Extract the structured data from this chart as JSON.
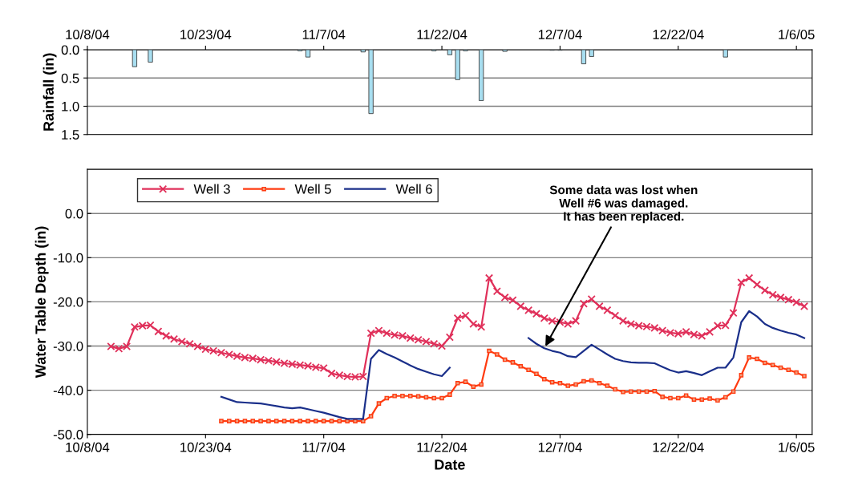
{
  "chart_data": [
    {
      "type": "bar",
      "ylabel": "Rainfall (in)",
      "x": [
        "2004-10-14",
        "2004-10-16",
        "2004-11-04",
        "2004-11-05",
        "2004-11-12",
        "2004-11-13",
        "2004-11-21",
        "2004-11-23",
        "2004-11-24",
        "2004-11-25",
        "2004-11-27",
        "2004-11-30",
        "2004-12-06",
        "2004-12-07",
        "2004-12-10",
        "2004-12-11",
        "2004-12-28"
      ],
      "values": [
        0.3,
        0.22,
        0.02,
        0.13,
        0.04,
        1.13,
        0.02,
        0.09,
        0.53,
        0.02,
        0.9,
        0.03,
        0.01,
        0.01,
        0.25,
        0.12,
        0.13
      ],
      "color": "#a8def0",
      "xlim": [
        "2004-10-08",
        "2005-01-08"
      ],
      "xticks": [
        {
          "value": "2004-10-08",
          "label": "10/8/04"
        },
        {
          "value": "2004-10-23",
          "label": "10/23/04"
        },
        {
          "value": "2004-11-07",
          "label": "11/7/04"
        },
        {
          "value": "2004-11-22",
          "label": "11/22/04"
        },
        {
          "value": "2004-12-07",
          "label": "12/7/04"
        },
        {
          "value": "2004-12-22",
          "label": "12/22/04"
        },
        {
          "value": "2005-01-06",
          "label": "1/6/05"
        }
      ],
      "ylim": [
        1.5,
        0
      ],
      "yticks": [
        {
          "value": 0,
          "label": "0.0"
        },
        {
          "value": 0.5,
          "label": "0.5"
        },
        {
          "value": 1.0,
          "label": "1.0"
        },
        {
          "value": 1.5,
          "label": "1.5"
        }
      ],
      "grid": "y"
    },
    {
      "type": "line",
      "xlabel": "Date",
      "ylabel": "Water Table Depth (in)",
      "legend": "top left",
      "grid": "y",
      "x": [
        "2004-10-11",
        "2004-10-12",
        "2004-10-13",
        "2004-10-14",
        "2004-10-15",
        "2004-10-16",
        "2004-10-17",
        "2004-10-18",
        "2004-10-19",
        "2004-10-20",
        "2004-10-21",
        "2004-10-22",
        "2004-10-23",
        "2004-10-24",
        "2004-10-25",
        "2004-10-26",
        "2004-10-27",
        "2004-10-28",
        "2004-10-29",
        "2004-10-30",
        "2004-10-31",
        "2004-11-01",
        "2004-11-02",
        "2004-11-03",
        "2004-11-04",
        "2004-11-05",
        "2004-11-06",
        "2004-11-07",
        "2004-11-08",
        "2004-11-09",
        "2004-11-10",
        "2004-11-11",
        "2004-11-12",
        "2004-11-13",
        "2004-11-14",
        "2004-11-15",
        "2004-11-16",
        "2004-11-17",
        "2004-11-18",
        "2004-11-19",
        "2004-11-20",
        "2004-11-21",
        "2004-11-22",
        "2004-11-23",
        "2004-11-24",
        "2004-11-25",
        "2004-11-26",
        "2004-11-27",
        "2004-11-28",
        "2004-11-29",
        "2004-11-30",
        "2004-12-01",
        "2004-12-02",
        "2004-12-03",
        "2004-12-04",
        "2004-12-05",
        "2004-12-06",
        "2004-12-07",
        "2004-12-08",
        "2004-12-09",
        "2004-12-10",
        "2004-12-11",
        "2004-12-12",
        "2004-12-13",
        "2004-12-14",
        "2004-12-15",
        "2004-12-16",
        "2004-12-17",
        "2004-12-18",
        "2004-12-19",
        "2004-12-20",
        "2004-12-21",
        "2004-12-22",
        "2004-12-23",
        "2004-12-24",
        "2004-12-25",
        "2004-12-26",
        "2004-12-27",
        "2004-12-28",
        "2004-12-29",
        "2004-12-30",
        "2004-12-31",
        "2005-01-01",
        "2005-01-02",
        "2005-01-03",
        "2005-01-04",
        "2005-01-05",
        "2005-01-06",
        "2005-01-07"
      ],
      "series": [
        {
          "name": "Well 3",
          "color": "#e0305a",
          "marker": "cross",
          "values": [
            -30.1,
            -30.6,
            -30.1,
            -25.7,
            -25.4,
            -25.3,
            -26.7,
            -27.7,
            -28.4,
            -29.0,
            -29.5,
            -30.1,
            -30.7,
            -31.1,
            -31.5,
            -31.9,
            -32.3,
            -32.6,
            -32.8,
            -33.1,
            -33.3,
            -33.6,
            -33.9,
            -34.1,
            -34.3,
            -34.5,
            -34.8,
            -35.0,
            -36.2,
            -36.6,
            -36.9,
            -37.0,
            -36.9,
            -27.1,
            -26.5,
            -27.1,
            -27.5,
            -27.7,
            -28.2,
            -28.6,
            -29.0,
            -29.5,
            -30.0,
            -28.0,
            -23.7,
            -23.1,
            -25.0,
            -25.7,
            -14.6,
            -17.6,
            -19.0,
            -19.6,
            -21.0,
            -21.9,
            -22.7,
            -23.7,
            -24.3,
            -24.6,
            -25.0,
            -24.3,
            -20.4,
            -19.4,
            -21.0,
            -21.9,
            -23.1,
            -24.3,
            -25.0,
            -25.4,
            -25.6,
            -25.9,
            -26.5,
            -27.0,
            -27.2,
            -26.8,
            -27.4,
            -27.7,
            -26.8,
            -25.4,
            -25.3,
            -22.5,
            -15.6,
            -14.6,
            -16.1,
            -17.4,
            -18.4,
            -19.0,
            -19.5,
            -20.1,
            -21.0
          ]
        },
        {
          "name": "Well 5",
          "color": "#ff3b10",
          "marker": "square",
          "values": [
            null,
            null,
            null,
            null,
            null,
            null,
            null,
            null,
            null,
            null,
            null,
            null,
            null,
            null,
            -47.0,
            -47.0,
            -47.0,
            -47.0,
            -47.0,
            -47.0,
            -47.0,
            -47.0,
            -47.0,
            -47.0,
            -47.0,
            -47.0,
            -47.0,
            -47.0,
            -47.0,
            -47.0,
            -47.0,
            -47.0,
            -47.0,
            -45.9,
            -43.0,
            -41.8,
            -41.3,
            -41.3,
            -41.3,
            -41.4,
            -41.6,
            -41.8,
            -41.8,
            -41.0,
            -38.4,
            -38.1,
            -39.2,
            -38.7,
            -31.1,
            -31.9,
            -33.1,
            -33.7,
            -34.6,
            -35.4,
            -36.3,
            -37.5,
            -38.2,
            -38.4,
            -39.0,
            -38.7,
            -38.0,
            -37.8,
            -38.4,
            -39.0,
            -39.8,
            -40.4,
            -40.3,
            -40.3,
            -40.3,
            -40.2,
            -41.5,
            -41.8,
            -41.8,
            -41.2,
            -42.1,
            -42.1,
            -41.9,
            -42.3,
            -41.6,
            -40.3,
            -36.6,
            -32.6,
            -32.9,
            -33.8,
            -34.3,
            -34.9,
            -35.4,
            -36.0,
            -36.8
          ]
        },
        {
          "name": "Well 6",
          "color": "#1a2f8a",
          "marker": "none",
          "values": [
            null,
            null,
            null,
            null,
            null,
            null,
            null,
            null,
            null,
            null,
            null,
            null,
            null,
            null,
            -41.5,
            -42.1,
            -42.7,
            -42.8,
            -42.9,
            -43.0,
            -43.3,
            -43.6,
            -43.9,
            -44.1,
            -43.9,
            -44.3,
            -44.7,
            -45.1,
            -45.6,
            -46.1,
            -46.5,
            -46.5,
            -46.5,
            -32.9,
            -30.9,
            -31.8,
            -32.6,
            -33.5,
            -34.4,
            -35.2,
            -35.8,
            -36.4,
            -36.8,
            -34.9,
            null,
            null,
            null,
            null,
            null,
            null,
            null,
            null,
            null,
            -28.2,
            -29.5,
            -30.5,
            -31.1,
            -31.5,
            -32.3,
            -32.5,
            -31.1,
            -29.7,
            -30.8,
            -31.9,
            -32.9,
            -33.4,
            -33.7,
            -33.8,
            -33.8,
            -33.9,
            -34.7,
            -35.5,
            -36.0,
            -35.7,
            -36.1,
            -36.6,
            -35.7,
            -34.9,
            -34.9,
            -32.6,
            -24.6,
            -22.1,
            -23.3,
            -25.0,
            -25.9,
            -26.5,
            -27.0,
            -27.4,
            -28.2
          ]
        }
      ],
      "xlim": [
        "2004-10-08",
        "2005-01-08"
      ],
      "xticks": [
        {
          "value": "2004-10-08",
          "label": "10/8/04"
        },
        {
          "value": "2004-10-23",
          "label": "10/23/04"
        },
        {
          "value": "2004-11-07",
          "label": "11/7/04"
        },
        {
          "value": "2004-11-22",
          "label": "11/22/04"
        },
        {
          "value": "2004-12-07",
          "label": "12/7/04"
        },
        {
          "value": "2004-12-22",
          "label": "12/22/04"
        },
        {
          "value": "2005-01-06",
          "label": "1/6/05"
        }
      ],
      "ylim": [
        -50,
        10
      ],
      "yticks": [
        {
          "value": -50,
          "label": "-50.0"
        },
        {
          "value": -40,
          "label": "-40.0"
        },
        {
          "value": -30,
          "label": "-30.0"
        },
        {
          "value": -20,
          "label": "-20.0"
        },
        {
          "value": -10,
          "label": "-10.0"
        },
        {
          "value": 0,
          "label": "0.0"
        }
      ],
      "annotations": [
        {
          "text": "Some data was lost when\nWell #6 was damaged.\nIt has been replaced.",
          "x": "2004-12-05",
          "y": -30.5
        }
      ]
    }
  ]
}
